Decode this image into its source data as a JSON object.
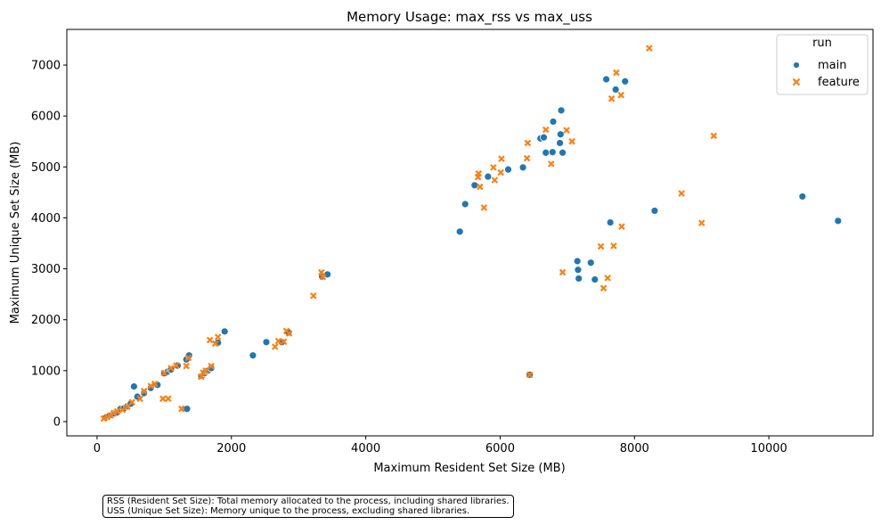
{
  "chart_data": {
    "type": "scatter",
    "title": "Memory Usage: max_rss vs max_uss",
    "xlabel": "Maximum Resident Set Size (MB)",
    "ylabel": "Maximum Unique Set Size (MB)",
    "xlim": [
      -450,
      11550
    ],
    "ylim": [
      -280,
      7700
    ],
    "xticks": [
      0,
      2000,
      4000,
      6000,
      8000,
      10000
    ],
    "yticks": [
      0,
      1000,
      2000,
      3000,
      4000,
      5000,
      6000,
      7000
    ],
    "grid": false,
    "legend": {
      "title": "run",
      "position": "top-right"
    },
    "series": [
      {
        "name": "main",
        "marker": "circle",
        "color": "#1f77b4",
        "points": [
          [
            130,
            80
          ],
          [
            180,
            110
          ],
          [
            220,
            130
          ],
          [
            260,
            160
          ],
          [
            300,
            180
          ],
          [
            350,
            250
          ],
          [
            400,
            260
          ],
          [
            450,
            300
          ],
          [
            500,
            350
          ],
          [
            550,
            690
          ],
          [
            600,
            490
          ],
          [
            700,
            560
          ],
          [
            800,
            660
          ],
          [
            900,
            720
          ],
          [
            1000,
            950
          ],
          [
            1050,
            980
          ],
          [
            1100,
            1020
          ],
          [
            1200,
            1100
          ],
          [
            1300,
            250
          ],
          [
            1340,
            250
          ],
          [
            1330,
            1220
          ],
          [
            1370,
            1300
          ],
          [
            1550,
            900
          ],
          [
            1580,
            920
          ],
          [
            1600,
            950
          ],
          [
            1650,
            1000
          ],
          [
            1700,
            1050
          ],
          [
            1800,
            1550
          ],
          [
            1900,
            1770
          ],
          [
            2320,
            1300
          ],
          [
            2520,
            1560
          ],
          [
            2750,
            1560
          ],
          [
            2850,
            1750
          ],
          [
            3350,
            2850
          ],
          [
            3430,
            2890
          ],
          [
            5400,
            3730
          ],
          [
            5480,
            4270
          ],
          [
            5620,
            4640
          ],
          [
            5820,
            4810
          ],
          [
            6120,
            4950
          ],
          [
            6340,
            4990
          ],
          [
            6440,
            920
          ],
          [
            6600,
            5560
          ],
          [
            6650,
            5580
          ],
          [
            6680,
            5280
          ],
          [
            6780,
            5290
          ],
          [
            6790,
            5890
          ],
          [
            6890,
            5470
          ],
          [
            6900,
            5640
          ],
          [
            6910,
            6110
          ],
          [
            6930,
            5280
          ],
          [
            7150,
            3150
          ],
          [
            7160,
            2980
          ],
          [
            7170,
            2810
          ],
          [
            7350,
            3120
          ],
          [
            7410,
            2790
          ],
          [
            7580,
            6720
          ],
          [
            7640,
            3910
          ],
          [
            7720,
            6520
          ],
          [
            7860,
            6680
          ],
          [
            8300,
            4140
          ],
          [
            10500,
            4420
          ],
          [
            11030,
            3940
          ]
        ]
      },
      {
        "name": "feature",
        "marker": "x",
        "color": "#ff7f0e",
        "points": [
          [
            100,
            60
          ],
          [
            150,
            90
          ],
          [
            200,
            120
          ],
          [
            250,
            170
          ],
          [
            300,
            200
          ],
          [
            380,
            230
          ],
          [
            450,
            290
          ],
          [
            520,
            380
          ],
          [
            640,
            450
          ],
          [
            700,
            600
          ],
          [
            800,
            700
          ],
          [
            860,
            740
          ],
          [
            980,
            450
          ],
          [
            1000,
            950
          ],
          [
            1060,
            450
          ],
          [
            1100,
            1050
          ],
          [
            1180,
            1100
          ],
          [
            1260,
            250
          ],
          [
            1330,
            1090
          ],
          [
            1360,
            1250
          ],
          [
            1550,
            880
          ],
          [
            1580,
            960
          ],
          [
            1620,
            1000
          ],
          [
            1700,
            1090
          ],
          [
            1680,
            1600
          ],
          [
            1760,
            1530
          ],
          [
            1800,
            1660
          ],
          [
            2650,
            1470
          ],
          [
            2700,
            1580
          ],
          [
            2780,
            1570
          ],
          [
            2820,
            1780
          ],
          [
            2860,
            1730
          ],
          [
            3220,
            2470
          ],
          [
            3340,
            2930
          ],
          [
            3360,
            2840
          ],
          [
            5670,
            4800
          ],
          [
            5680,
            4870
          ],
          [
            5700,
            4610
          ],
          [
            5760,
            4200
          ],
          [
            5900,
            4990
          ],
          [
            5920,
            4740
          ],
          [
            6010,
            4890
          ],
          [
            6020,
            5160
          ],
          [
            6400,
            5170
          ],
          [
            6410,
            5470
          ],
          [
            6440,
            920
          ],
          [
            6680,
            5730
          ],
          [
            6760,
            5060
          ],
          [
            6930,
            2930
          ],
          [
            6990,
            5720
          ],
          [
            7070,
            5500
          ],
          [
            7500,
            3440
          ],
          [
            7540,
            2620
          ],
          [
            7600,
            2820
          ],
          [
            7660,
            6340
          ],
          [
            7690,
            3450
          ],
          [
            7730,
            6850
          ],
          [
            7800,
            6410
          ],
          [
            7810,
            3830
          ],
          [
            8220,
            7330
          ],
          [
            8700,
            4480
          ],
          [
            9000,
            3900
          ],
          [
            9180,
            5610
          ]
        ]
      }
    ],
    "annotation": [
      "RSS (Resident Set Size): Total memory allocated to the process, including shared libraries.",
      "USS (Unique Set Size): Memory unique to the process, excluding shared libraries."
    ]
  }
}
